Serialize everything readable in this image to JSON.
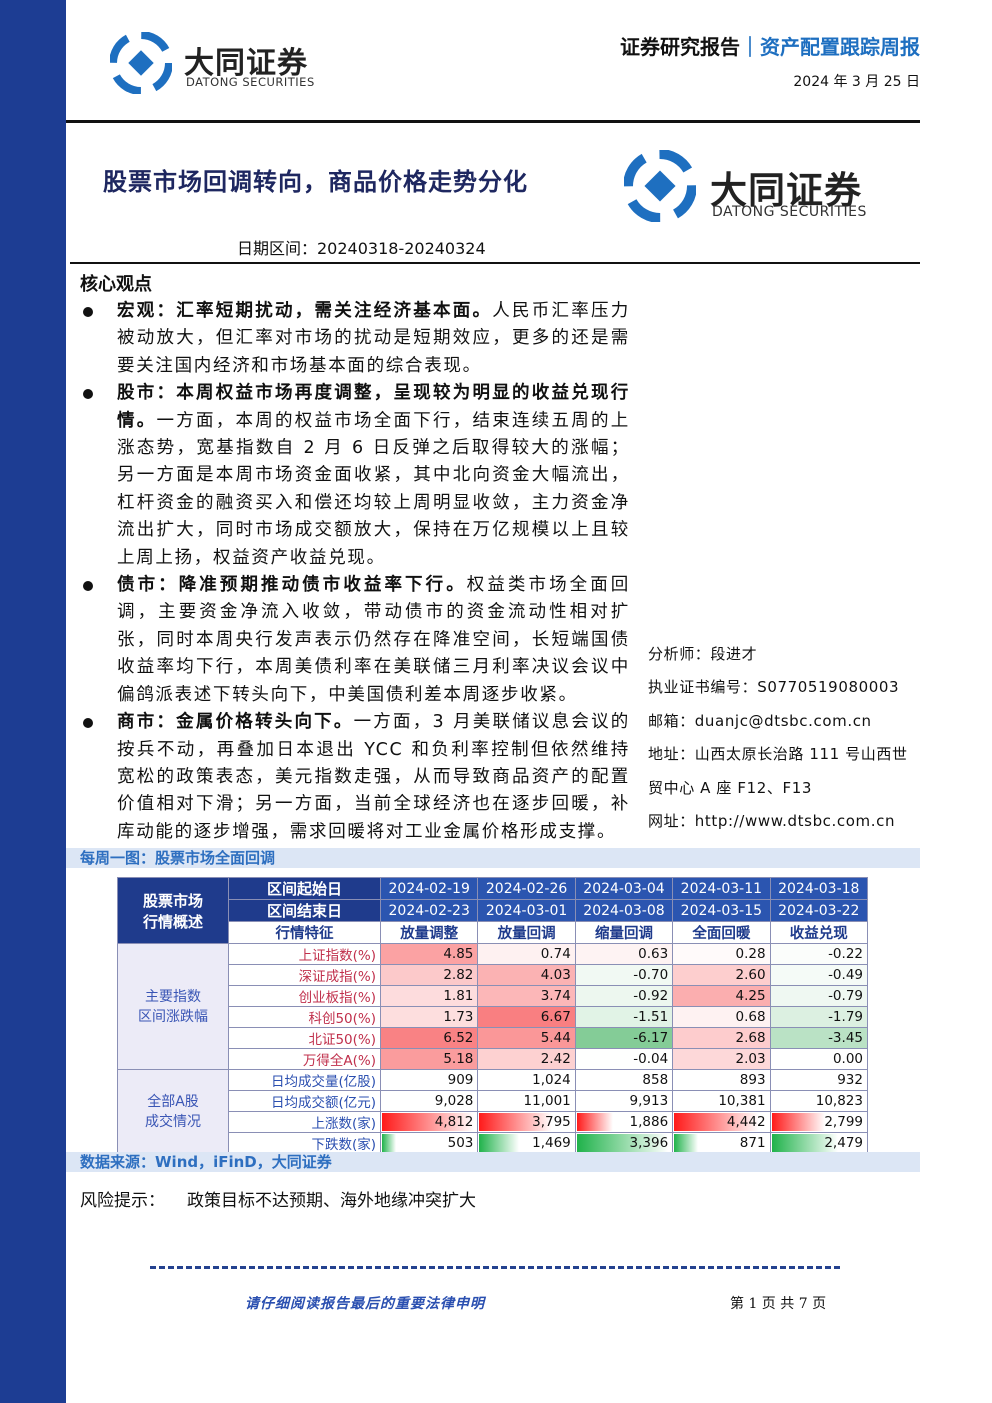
{
  "header": {
    "logo_cn": "大同证券",
    "logo_en": "DATONG SECURITIES",
    "report_type": "证券研究报告",
    "separator": "｜",
    "report_series": "资产配置跟踪周报",
    "date": "2024 年 3 月 25 日"
  },
  "title": "股票市场回调转向，商品价格走势分化",
  "title_logo": {
    "cn": "大同证券",
    "en": "DATONG SECURITIES"
  },
  "period": "日期区间：20240318-20240324",
  "core_views": {
    "heading": "核心观点",
    "items": [
      {
        "lead": "宏观：汇率短期扰动，需关注经济基本面。",
        "text": "人民币汇率压力被动放大，但汇率对市场的扰动是短期效应，更多的还是需要关注国内经济和市场基本面的综合表现。"
      },
      {
        "lead": "股市：本周权益市场再度调整，呈现较为明显的收益兑现行情。",
        "text": "一方面，本周的权益市场全面下行，结束连续五周的上涨态势，宽基指数自 2 月 6 日反弹之后取得较大的涨幅；另一方面是本周市场资金面收紧，其中北向资金大幅流出，杠杆资金的融资买入和偿还均较上周明显收敛，主力资金净流出扩大，同时市场成交额放大，保持在万亿规模以上且较上周上扬，权益资产收益兑现。"
      },
      {
        "lead": "债市：降准预期推动债市收益率下行。",
        "text": "权益类市场全面回调，主要资金净流入收敛，带动债市的资金流动性相对扩张，同时本周央行发声表示仍然存在降准空间，长短端国债收益率均下行，本周美债利率在美联储三月利率决议会议中偏鸽派表述下转头向下，中美国债利差本周逐步收紧。"
      },
      {
        "lead": "商市：金属价格转头向下。",
        "text": "一方面，3 月美联储议息会议的按兵不动，再叠加日本退出 YCC 和负利率控制但依然维持宽松的政策表态，美元指数走强，从而导致商品资产的配置价值相对下滑；另一方面，当前全球经济也在逐步回暖，补库动能的逐步增强，需求回暖将对工业金属价格形成支撑。"
      }
    ]
  },
  "analyst": [
    "分析师：段进才",
    "执业证书编号：S0770519080003",
    "邮箱：duanjc@dtsbc.com.cn",
    "地址：山西太原长治路 111 号山西世贸中心 A 座 F12、F13",
    "网址：http://www.dtsbc.com.cn"
  ],
  "figure": {
    "caption": "每周一图：股票市场全面回调",
    "table": {
      "corner": [
        "股票市场",
        "行情概述"
      ],
      "header_rows": [
        {
          "label": "区间起始日",
          "cells": [
            "2024-02-19",
            "2024-02-26",
            "2024-03-04",
            "2024-03-11",
            "2024-03-18"
          ]
        },
        {
          "label": "区间结束日",
          "cells": [
            "2024-02-23",
            "2024-03-01",
            "2024-03-08",
            "2024-03-15",
            "2024-03-22"
          ]
        }
      ],
      "feature_row": {
        "label": "行情特征",
        "cells": [
          "放量调整",
          "放量回调",
          "缩量回调",
          "全面回暖",
          "收益兑现"
        ]
      },
      "groups": [
        {
          "label": [
            "主要指数",
            "区间涨跌幅"
          ],
          "style": "heatmap",
          "rows": [
            {
              "label": "上证指数(%)",
              "cells": [
                "4.85",
                "0.74",
                "0.63",
                "0.28",
                "-0.22"
              ]
            },
            {
              "label": "深证成指(%)",
              "cells": [
                "2.82",
                "4.03",
                "-0.70",
                "2.60",
                "-0.49"
              ]
            },
            {
              "label": "创业板指(%)",
              "cells": [
                "1.81",
                "3.74",
                "-0.92",
                "4.25",
                "-0.79"
              ]
            },
            {
              "label": "科创50(%)",
              "cells": [
                "1.73",
                "6.67",
                "-1.51",
                "0.68",
                "-1.79"
              ]
            },
            {
              "label": "北证50(%)",
              "cells": [
                "6.52",
                "5.44",
                "-6.17",
                "2.68",
                "-3.45"
              ]
            },
            {
              "label": "万得全A(%)",
              "cells": [
                "5.18",
                "2.42",
                "-0.04",
                "2.03",
                "0.00"
              ]
            }
          ]
        },
        {
          "label": [
            "全部A股",
            "成交情况"
          ],
          "style": "plain",
          "rows": [
            {
              "label": "日均成交量(亿股)",
              "cells": [
                "909",
                "1,024",
                "858",
                "893",
                "932"
              ]
            },
            {
              "label": "日均成交额(亿元)",
              "cells": [
                "9,028",
                "11,001",
                "9,913",
                "10,381",
                "10,823"
              ]
            },
            {
              "label": "上涨数(家)",
              "bar": "#ff1a1a",
              "cells": [
                "4,812",
                "3,795",
                "1,886",
                "4,442",
                "2,799"
              ]
            },
            {
              "label": "下跌数(家)",
              "bar": "#1fb24a",
              "cells": [
                "503",
                "1,469",
                "3,396",
                "871",
                "2,479"
              ]
            }
          ]
        }
      ]
    },
    "source": "数据来源：Wind，iFinD，大同证券"
  },
  "risk": {
    "label": "风险提示：",
    "text": "政策目标不达预期、海外地缘冲突扩大"
  },
  "footer": {
    "notice": "请仔细阅读报告最后的重要法律申明",
    "page": "第 1 页 共 7 页"
  }
}
